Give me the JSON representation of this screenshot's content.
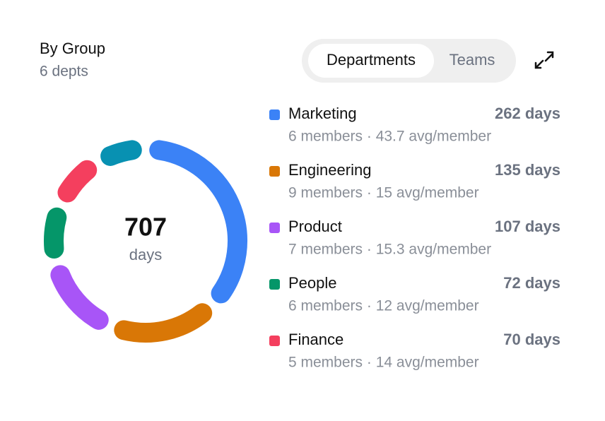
{
  "header": {
    "title": "By Group",
    "subtitle": "6 depts"
  },
  "tabs": [
    "Departments",
    "Teams"
  ],
  "chart_data": {
    "type": "donut",
    "categories": [
      "Marketing",
      "Engineering",
      "Product",
      "People",
      "Finance",
      null
    ],
    "values": [
      262,
      135,
      107,
      72,
      70,
      61
    ],
    "value_labels": [
      "262 days",
      "135 days",
      "107 days",
      "72 days",
      "70 days",
      null
    ],
    "details": [
      "6 members · 43.7 avg/member",
      "9 members · 15 avg/member",
      "7 members · 15.3 avg/member",
      "6 members · 12 avg/member",
      "5 members · 14 avg/member",
      null
    ],
    "colors": [
      "#3b82f6",
      "#d97706",
      "#a855f7",
      "#059669",
      "#f43f5e",
      "#0891b2"
    ],
    "total": 707,
    "total_label": "days"
  }
}
